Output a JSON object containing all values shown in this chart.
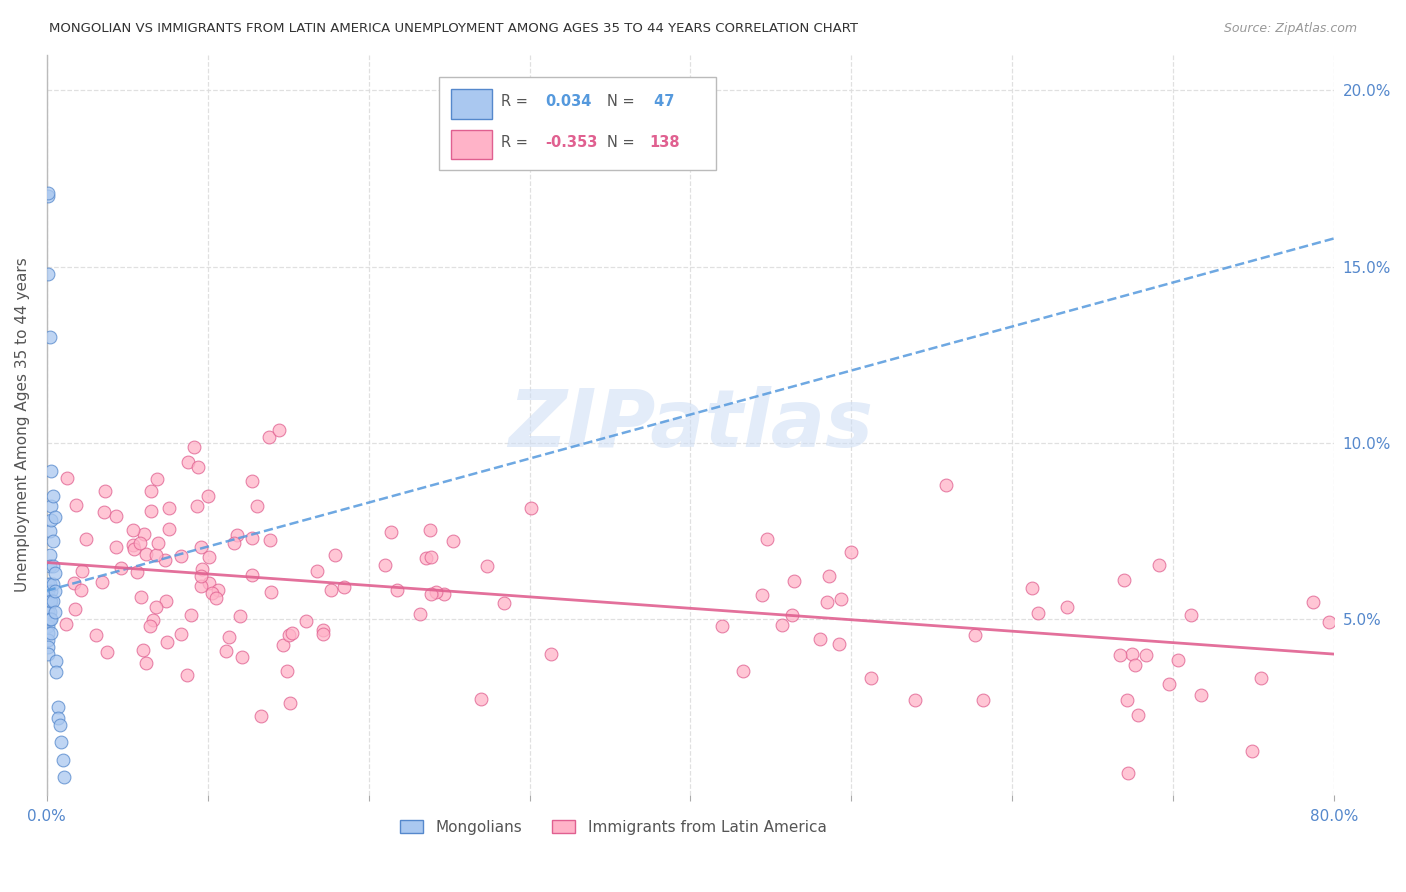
{
  "title": "MONGOLIAN VS IMMIGRANTS FROM LATIN AMERICA UNEMPLOYMENT AMONG AGES 35 TO 44 YEARS CORRELATION CHART",
  "source": "Source: ZipAtlas.com",
  "ylabel": "Unemployment Among Ages 35 to 44 years",
  "xlim": [
    0.0,
    0.8
  ],
  "ylim": [
    0.0,
    0.21
  ],
  "xtick_positions": [
    0.0,
    0.1,
    0.2,
    0.3,
    0.4,
    0.5,
    0.6,
    0.7,
    0.8
  ],
  "xticklabels": [
    "0.0%",
    "",
    "",
    "",
    "",
    "",
    "",
    "",
    "80.0%"
  ],
  "yticks_right": [
    0.05,
    0.1,
    0.15,
    0.2
  ],
  "ytick_right_labels": [
    "5.0%",
    "10.0%",
    "15.0%",
    "20.0%"
  ],
  "blue_color": "#aac8f0",
  "blue_edge_color": "#5588cc",
  "blue_line_color": "#5599dd",
  "pink_color": "#ffb3c8",
  "pink_edge_color": "#e06090",
  "pink_line_color": "#e06090",
  "title_color": "#333333",
  "axis_label_color": "#555555",
  "tick_color": "#5588cc",
  "watermark": "ZIPatlas",
  "watermark_color": "#ccddf5",
  "grid_color": "#dddddd",
  "blue_trend_x0": 0.0,
  "blue_trend_y0": 0.058,
  "blue_trend_x1": 0.8,
  "blue_trend_y1": 0.158,
  "pink_trend_x0": 0.0,
  "pink_trend_y0": 0.066,
  "pink_trend_x1": 0.8,
  "pink_trend_y1": 0.04,
  "bg_color": "#ffffff",
  "legend_r_blue": "R = ",
  "legend_val_blue": "0.034",
  "legend_n_blue": "N = ",
  "legend_nval_blue": " 47",
  "legend_r_pink": "R = ",
  "legend_val_pink": "-0.353",
  "legend_n_pink": "N = ",
  "legend_nval_pink": "138",
  "mongo_seed_x": [
    0.001,
    0.001,
    0.001,
    0.001,
    0.001,
    0.001,
    0.001,
    0.001,
    0.001,
    0.001,
    0.001,
    0.001,
    0.001,
    0.001,
    0.001,
    0.002,
    0.002,
    0.002,
    0.002,
    0.002,
    0.002,
    0.002,
    0.002,
    0.003,
    0.003,
    0.003,
    0.003,
    0.003,
    0.003,
    0.003,
    0.004,
    0.004,
    0.004,
    0.004,
    0.004,
    0.005,
    0.005,
    0.005,
    0.005,
    0.006,
    0.006,
    0.007,
    0.007,
    0.008,
    0.009,
    0.01,
    0.011
  ],
  "mongo_seed_y": [
    0.17,
    0.171,
    0.148,
    0.06,
    0.058,
    0.057,
    0.056,
    0.055,
    0.052,
    0.05,
    0.048,
    0.046,
    0.044,
    0.042,
    0.04,
    0.13,
    0.075,
    0.068,
    0.065,
    0.06,
    0.055,
    0.052,
    0.05,
    0.092,
    0.082,
    0.078,
    0.058,
    0.055,
    0.05,
    0.046,
    0.085,
    0.072,
    0.065,
    0.06,
    0.055,
    0.079,
    0.063,
    0.058,
    0.052,
    0.038,
    0.035,
    0.025,
    0.022,
    0.02,
    0.015,
    0.01,
    0.005
  ]
}
